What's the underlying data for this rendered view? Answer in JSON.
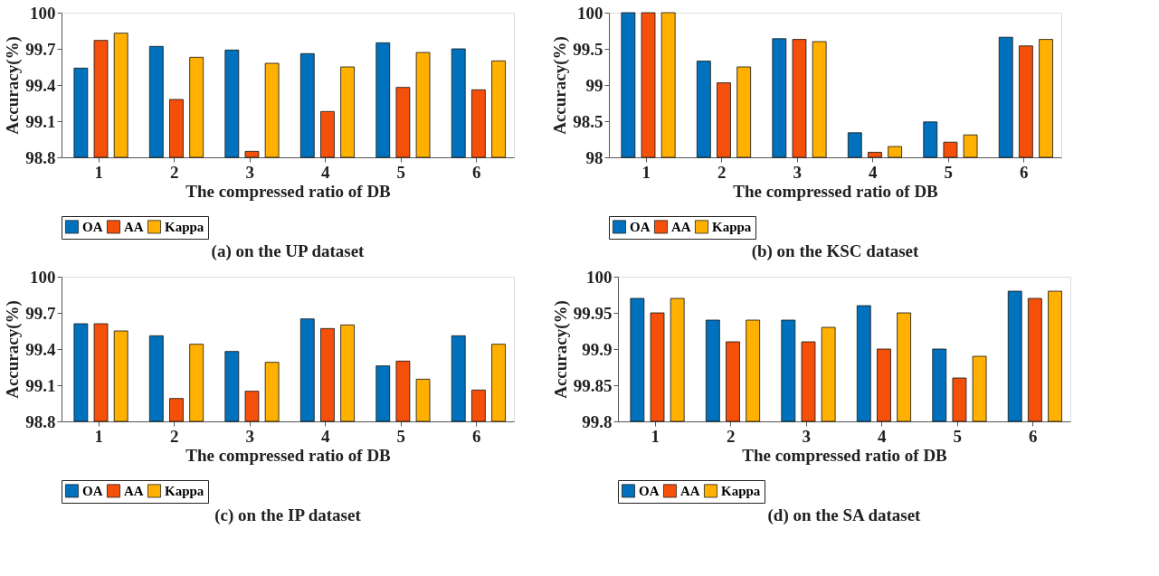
{
  "chart_data": [
    {
      "type": "bar",
      "title": "(a) on the UP dataset",
      "xlabel": "The compressed ratio of DB",
      "ylabel": "Accuracy(%)",
      "categories": [
        "1",
        "2",
        "3",
        "4",
        "5",
        "6"
      ],
      "ylim": [
        98.8,
        100
      ],
      "yticks": [
        98.8,
        99.1,
        99.4,
        99.7,
        100
      ],
      "grid": false,
      "legend": "bottom",
      "series": [
        {
          "name": "OA",
          "color": "#0072bd",
          "values": [
            99.54,
            99.72,
            99.69,
            99.66,
            99.75,
            99.7
          ]
        },
        {
          "name": "AA",
          "color": "#f5500a",
          "values": [
            99.77,
            99.28,
            98.85,
            99.18,
            99.38,
            99.36
          ]
        },
        {
          "name": "Kappa",
          "color": "#ffb000",
          "values": [
            99.83,
            99.63,
            99.58,
            99.55,
            99.67,
            99.6
          ]
        }
      ]
    },
    {
      "type": "bar",
      "title": "(b) on the KSC dataset",
      "xlabel": "The compressed ratio of DB",
      "ylabel": "Accuracy(%)",
      "categories": [
        "1",
        "2",
        "3",
        "4",
        "5",
        "6"
      ],
      "ylim": [
        98,
        100
      ],
      "yticks": [
        98,
        98.5,
        99,
        99.5,
        100
      ],
      "grid": false,
      "legend": "bottom",
      "series": [
        {
          "name": "OA",
          "color": "#0072bd",
          "values": [
            100,
            99.33,
            99.64,
            98.34,
            98.49,
            99.66
          ]
        },
        {
          "name": "AA",
          "color": "#f5500a",
          "values": [
            100,
            99.03,
            99.63,
            98.07,
            98.21,
            99.54
          ]
        },
        {
          "name": "Kappa",
          "color": "#ffb000",
          "values": [
            100,
            99.25,
            99.6,
            98.15,
            98.31,
            99.63
          ]
        }
      ]
    },
    {
      "type": "bar",
      "title": "(c) on the IP dataset",
      "xlabel": "The compressed ratio of DB",
      "ylabel": "Accuracy(%)",
      "categories": [
        "1",
        "2",
        "3",
        "4",
        "5",
        "6"
      ],
      "ylim": [
        98.8,
        100
      ],
      "yticks": [
        98.8,
        99.1,
        99.4,
        99.7,
        100
      ],
      "grid": false,
      "legend": "bottom",
      "series": [
        {
          "name": "OA",
          "color": "#0072bd",
          "values": [
            99.61,
            99.51,
            99.38,
            99.65,
            99.26,
            99.51
          ]
        },
        {
          "name": "AA",
          "color": "#f5500a",
          "values": [
            99.61,
            98.99,
            99.05,
            99.57,
            99.3,
            99.06
          ]
        },
        {
          "name": "Kappa",
          "color": "#ffb000",
          "values": [
            99.55,
            99.44,
            99.29,
            99.6,
            99.15,
            99.44
          ]
        }
      ]
    },
    {
      "type": "bar",
      "title": "(d) on the SA dataset",
      "xlabel": "The compressed ratio of DB",
      "ylabel": "Accuracy(%)",
      "categories": [
        "1",
        "2",
        "3",
        "4",
        "5",
        "6"
      ],
      "ylim": [
        99.8,
        100
      ],
      "yticks": [
        99.8,
        99.85,
        99.9,
        99.95,
        100
      ],
      "grid": false,
      "legend": "bottom",
      "series": [
        {
          "name": "OA",
          "color": "#0072bd",
          "values": [
            99.97,
            99.94,
            99.94,
            99.96,
            99.9,
            99.98
          ]
        },
        {
          "name": "AA",
          "color": "#f5500a",
          "values": [
            99.95,
            99.91,
            99.91,
            99.9,
            99.86,
            99.97
          ]
        },
        {
          "name": "Kappa",
          "color": "#ffb000",
          "values": [
            99.97,
            99.94,
            99.93,
            99.95,
            99.89,
            99.98
          ]
        }
      ]
    }
  ]
}
